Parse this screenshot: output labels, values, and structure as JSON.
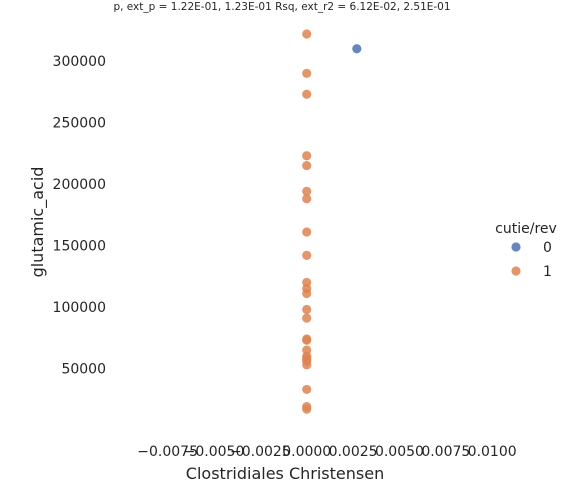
{
  "chart_data": {
    "type": "scatter",
    "title": "p, ext_p = 1.22E-01, 1.23E-01 Rsq, ext_r2 = 6.12E-02, 2.51E-01",
    "xlabel": "Clostridiales Christensen",
    "ylabel": "glutamic_acid",
    "xlim": [
      -0.0105,
      0.0115
    ],
    "ylim": [
      0,
      335000
    ],
    "xticks": [
      -0.0075,
      -0.005,
      -0.0025,
      0.0,
      0.0025,
      0.005,
      0.0075,
      0.01
    ],
    "xtick_labels": [
      "−0.0075",
      "−0.0050",
      "−0.0025",
      "0.0000",
      "0.0025",
      "0.0050",
      "0.0075",
      "0.0100"
    ],
    "yticks": [
      50000,
      100000,
      150000,
      200000,
      250000,
      300000
    ],
    "ytick_labels": [
      "50000",
      "100000",
      "150000",
      "200000",
      "250000",
      "300000"
    ],
    "grid": false,
    "legend": {
      "title": "cutie/rev",
      "placement": "right",
      "entries": [
        {
          "label": "0",
          "color": "#4c72b0"
        },
        {
          "label": "1",
          "color": "#dd8452"
        }
      ]
    },
    "series": [
      {
        "name": "0",
        "color": "#4c72b0",
        "points": [
          {
            "x": 0.0027,
            "y": 310000
          }
        ]
      },
      {
        "name": "1",
        "color": "#dd8452",
        "points": [
          {
            "x": 0.0,
            "y": 322000
          },
          {
            "x": 0.0,
            "y": 290000
          },
          {
            "x": 0.0,
            "y": 273000
          },
          {
            "x": 0.0,
            "y": 223000
          },
          {
            "x": 0.0,
            "y": 215000
          },
          {
            "x": 0.0,
            "y": 194000
          },
          {
            "x": 0.0,
            "y": 188000
          },
          {
            "x": 0.0,
            "y": 161000
          },
          {
            "x": 0.0,
            "y": 142000
          },
          {
            "x": 0.0,
            "y": 120000
          },
          {
            "x": 0.0,
            "y": 115000
          },
          {
            "x": 0.0,
            "y": 111000
          },
          {
            "x": 0.0,
            "y": 98000
          },
          {
            "x": 0.0,
            "y": 91000
          },
          {
            "x": 0.0,
            "y": 74000
          },
          {
            "x": 0.0,
            "y": 73000
          },
          {
            "x": 0.0,
            "y": 65000
          },
          {
            "x": 0.0,
            "y": 60000
          },
          {
            "x": 0.0,
            "y": 58000
          },
          {
            "x": 0.0,
            "y": 56000
          },
          {
            "x": 0.0,
            "y": 53000
          },
          {
            "x": 0.0,
            "y": 33000
          },
          {
            "x": 0.0,
            "y": 19000
          },
          {
            "x": 0.0,
            "y": 17000
          }
        ]
      }
    ]
  }
}
